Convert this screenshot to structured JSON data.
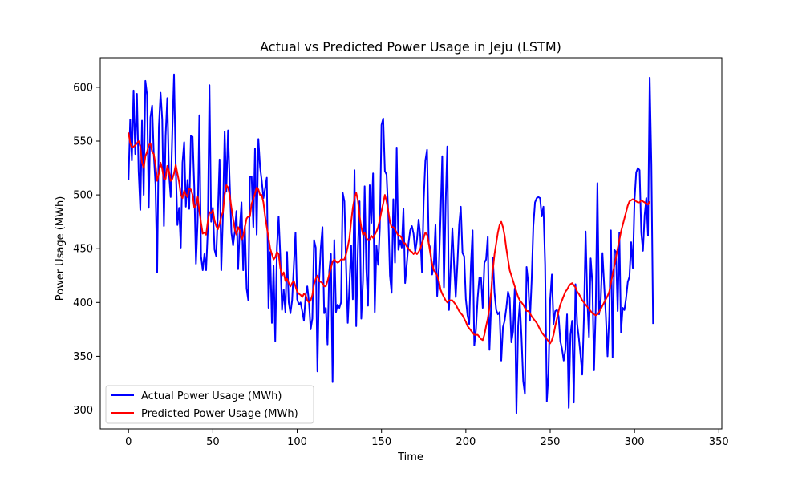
{
  "chart_data": {
    "type": "line",
    "title": "Actual vs Predicted Power Usage in Jeju (LSTM)",
    "xlabel": "Time",
    "ylabel": "Power Usage (MWh)",
    "xlim": [
      -16.75,
      351.75
    ],
    "ylim": [
      282.5,
      627.5
    ],
    "xticks": [
      0,
      50,
      100,
      150,
      200,
      250,
      300,
      350
    ],
    "yticks": [
      300,
      350,
      400,
      450,
      500,
      550,
      600
    ],
    "grid": false,
    "legend_position": "lower-left",
    "colors": {
      "actual": "#0000ff",
      "predicted": "#ff0000"
    },
    "series": [
      {
        "name": "Actual Power Usage (MWh)",
        "color": "#0000ff",
        "x_start": 0,
        "x_step": 1,
        "values": [
          514,
          570,
          532,
          597,
          538,
          594,
          522,
          486,
          569,
          500,
          606,
          593,
          488,
          572,
          583,
          537,
          510,
          428,
          563,
          595,
          570,
          471,
          555,
          590,
          520,
          498,
          560,
          612,
          527,
          472,
          488,
          451,
          530,
          549,
          489,
          514,
          487,
          555,
          554,
          507,
          436,
          476,
          574,
          443,
          430,
          445,
          430,
          467,
          602,
          475,
          488,
          449,
          443,
          484,
          533,
          430,
          482,
          559,
          503,
          560,
          512,
          465,
          453,
          466,
          485,
          431,
          470,
          493,
          430,
          471,
          413,
          402,
          517,
          517,
          470,
          543,
          463,
          552,
          526,
          513,
          497,
          506,
          516,
          395,
          447,
          381,
          434,
          364,
          451,
          480,
          443,
          393,
          412,
          391,
          447,
          400,
          390,
          402,
          434,
          465,
          403,
          398,
          400,
          392,
          383,
          406,
          415,
          400,
          375,
          385,
          458,
          451,
          336,
          420,
          451,
          470,
          390,
          395,
          361,
          429,
          445,
          326,
          458,
          391,
          398,
          395,
          400,
          502,
          494,
          434,
          381,
          416,
          453,
          403,
          523,
          378,
          449,
          494,
          385,
          420,
          508,
          431,
          397,
          509,
          474,
          520,
          391,
          453,
          435,
          469,
          565,
          571,
          522,
          519,
          483,
          425,
          409,
          496,
          437,
          544,
          449,
          458,
          451,
          487,
          418,
          436,
          455,
          467,
          471,
          464,
          447,
          458,
          477,
          462,
          428,
          494,
          532,
          542,
          455,
          450,
          426,
          436,
          472,
          406,
          432,
          480,
          536,
          414,
          491,
          545,
          393,
          432,
          469,
          436,
          405,
          436,
          472,
          489,
          446,
          443,
          403,
          388,
          380,
          435,
          467,
          360,
          375,
          404,
          423,
          423,
          395,
          437,
          440,
          461,
          356,
          397,
          442,
          409,
          393,
          389,
          391,
          346,
          377,
          383,
          395,
          410,
          404,
          363,
          373,
          413,
          297,
          378,
          400,
          368,
          327,
          315,
          433,
          418,
          383,
          420,
          471,
          493,
          497,
          498,
          497,
          480,
          489,
          435,
          308,
          334,
          403,
          426,
          380,
          392,
          393,
          387,
          364,
          357,
          346,
          356,
          389,
          302,
          370,
          383,
          307,
          417,
          380,
          367,
          351,
          333,
          386,
          466,
          402,
          368,
          441,
          418,
          337,
          394,
          511,
          389,
          403,
          446,
          416,
          388,
          350,
          387,
          467,
          349,
          449,
          447,
          392,
          465,
          372,
          395,
          393,
          404,
          419,
          424,
          456,
          432,
          495,
          521,
          525,
          523,
          465,
          448,
          481,
          497,
          462,
          609,
          528,
          380
        ]
      },
      {
        "name": "Predicted Power Usage (MWh)",
        "color": "#ff0000",
        "x_start": 0,
        "x_step": 1,
        "values": [
          558,
          548,
          544,
          545,
          546,
          548,
          550,
          545,
          530,
          525,
          536,
          540,
          546,
          548,
          540,
          538,
          528,
          513,
          520,
          530,
          524,
          515,
          515,
          527,
          522,
          513,
          515,
          520,
          528,
          520,
          512,
          500,
          497,
          504,
          500,
          498,
          506,
          505,
          500,
          488,
          490,
          498,
          485,
          474,
          464,
          465,
          463,
          475,
          484,
          483,
          486,
          476,
          471,
          468,
          473,
          480,
          484,
          500,
          509,
          507,
          500,
          488,
          478,
          468,
          463,
          470,
          467,
          458,
          462,
          470,
          478,
          480,
          480,
          492,
          496,
          501,
          507,
          505,
          500,
          500,
          493,
          480,
          470,
          460,
          450,
          445,
          440,
          442,
          447,
          445,
          432,
          425,
          428,
          420,
          422,
          418,
          415,
          418,
          420,
          415,
          410,
          408,
          407,
          405,
          408,
          407,
          402,
          400,
          402,
          407,
          417,
          422,
          425,
          420,
          419,
          418,
          415,
          415,
          420,
          426,
          432,
          438,
          440,
          438,
          437,
          438,
          440,
          440,
          440,
          445,
          452,
          460,
          475,
          488,
          497,
          502,
          495,
          480,
          470,
          463,
          465,
          460,
          458,
          458,
          462,
          460,
          463,
          466,
          470,
          477,
          485,
          492,
          500,
          494,
          485,
          475,
          470,
          470,
          468,
          465,
          462,
          462,
          460,
          455,
          455,
          452,
          450,
          448,
          447,
          445,
          447,
          445,
          447,
          450,
          455,
          460,
          465,
          463,
          455,
          445,
          436,
          430,
          428,
          425,
          420,
          412,
          408,
          405,
          402,
          400,
          402,
          402,
          402,
          400,
          398,
          395,
          392,
          390,
          388,
          385,
          382,
          378,
          376,
          374,
          372,
          370,
          370,
          370,
          368,
          366,
          365,
          370,
          378,
          385,
          395,
          410,
          430,
          445,
          455,
          465,
          472,
          475,
          470,
          462,
          450,
          440,
          430,
          425,
          420,
          415,
          410,
          405,
          402,
          400,
          398,
          395,
          392,
          392,
          390,
          387,
          385,
          383,
          381,
          378,
          375,
          372,
          370,
          368,
          366,
          364,
          362,
          365,
          370,
          378,
          385,
          392,
          398,
          402,
          406,
          410,
          412,
          415,
          417,
          418,
          416,
          414,
          410,
          408,
          405,
          402,
          400,
          398,
          396,
          394,
          392,
          390,
          389,
          388,
          389,
          391,
          394,
          397,
          400,
          403,
          406,
          410,
          418,
          426,
          434,
          442,
          450,
          458,
          466,
          472,
          478,
          484,
          490,
          494,
          495,
          496,
          495,
          494,
          493,
          493,
          495,
          494,
          493,
          492,
          491,
          494
        ]
      }
    ]
  }
}
